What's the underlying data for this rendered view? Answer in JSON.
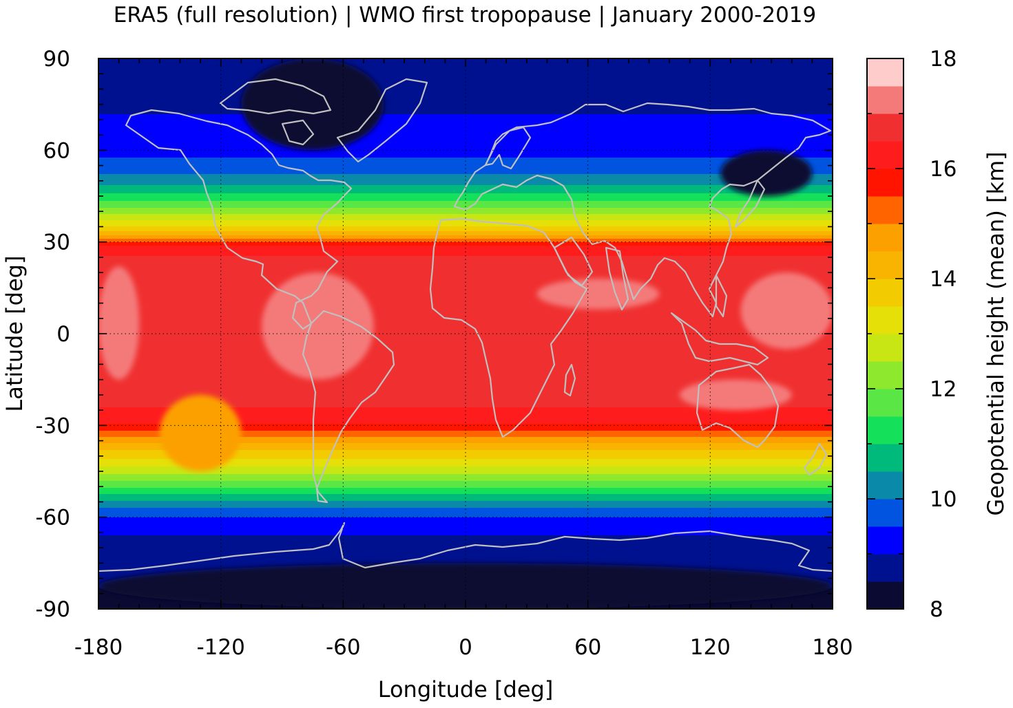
{
  "chart_data": {
    "type": "heatmap",
    "title": "ERA5 (full resolution) | WMO first tropopause | January 2000-2019",
    "xlabel": "Longitude [deg]",
    "ylabel": "Latitude [deg]",
    "xlim": [
      -180,
      180
    ],
    "ylim": [
      -90,
      90
    ],
    "x_ticks": [
      -180,
      -120,
      -60,
      0,
      60,
      120,
      180
    ],
    "y_ticks": [
      90,
      60,
      30,
      0,
      -30,
      -60,
      -90
    ],
    "x_tick_labels": [
      "-180",
      "-120",
      "-60",
      "0",
      "60",
      "120",
      "180"
    ],
    "y_tick_labels": [
      "90",
      "60",
      "30",
      "0",
      "-30",
      "-60",
      "-90"
    ],
    "grid": true,
    "colorbar": {
      "label": "Geopotential height (mean) [km]",
      "range": [
        8,
        18
      ],
      "step": 0.5,
      "ticks": [
        8,
        10,
        12,
        14,
        16,
        18
      ],
      "tick_labels": [
        "8",
        "10",
        "12",
        "14",
        "16",
        "18"
      ],
      "colors": [
        "#0a0a32",
        "#00118f",
        "#0000ff",
        "#0054e0",
        "#0a8aa8",
        "#00ba7c",
        "#14e05a",
        "#5ae644",
        "#8ee82e",
        "#c8e614",
        "#e4e008",
        "#f2cc00",
        "#f8b400",
        "#fca000",
        "#ff6400",
        "#ff1400",
        "#ff1c1c",
        "#f03030",
        "#f47a7a",
        "#ffcccc"
      ]
    },
    "zonal_profile": {
      "latitude": [
        90,
        75,
        65,
        55,
        48,
        42,
        38,
        34,
        31,
        28,
        20,
        10,
        0,
        -10,
        -20,
        -28,
        -33,
        -37,
        -42,
        -47,
        -52,
        -57,
        -62,
        -70,
        -80,
        -90
      ],
      "height_km": [
        8.9,
        8.9,
        9.2,
        9.6,
        10.6,
        11.8,
        12.8,
        13.8,
        15.0,
        16.4,
        16.7,
        16.8,
        16.9,
        16.8,
        16.7,
        16.3,
        15.2,
        14.2,
        13.3,
        12.3,
        11.1,
        10.0,
        9.2,
        8.8,
        8.6,
        8.3
      ]
    },
    "regional_features": [
      {
        "lon": [
          -110,
          -40
        ],
        "lat": [
          60,
          90
        ],
        "height_km": 8.2
      },
      {
        "lon": [
          125,
          170
        ],
        "lat": [
          45,
          60
        ],
        "height_km": 8.2
      },
      {
        "lon": [
          -180,
          -160
        ],
        "lat": [
          -15,
          22
        ],
        "height_km": 17.3
      },
      {
        "lon": [
          -100,
          -45
        ],
        "lat": [
          -15,
          20
        ],
        "height_km": 17.3
      },
      {
        "lon": [
          35,
          95
        ],
        "lat": [
          8,
          18
        ],
        "height_km": 17.3
      },
      {
        "lon": [
          105,
          160
        ],
        "lat": [
          -25,
          -15
        ],
        "height_km": 17.3
      },
      {
        "lon": [
          135,
          180
        ],
        "lat": [
          -5,
          20
        ],
        "height_km": 17.3
      },
      {
        "lon": [
          -150,
          -110
        ],
        "lat": [
          -45,
          -20
        ],
        "height_km": 14.8
      },
      {
        "lon": [
          -180,
          180
        ],
        "lat": [
          -90,
          -75
        ],
        "height_km": 8.2
      }
    ]
  }
}
